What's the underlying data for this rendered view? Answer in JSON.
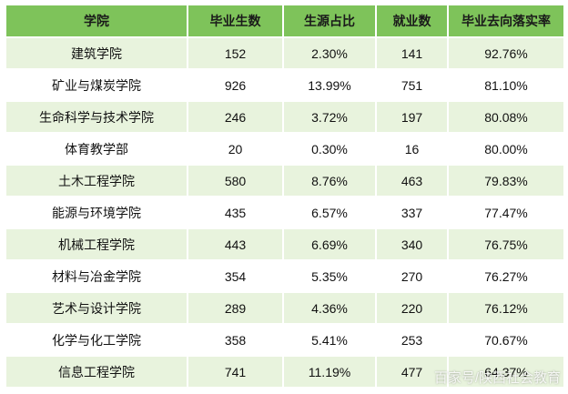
{
  "table": {
    "header": [
      "学院",
      "毕业生数",
      "生源占比",
      "就业数",
      "毕业去向落实率"
    ],
    "rows": [
      [
        "建筑学院",
        "152",
        "2.30%",
        "141",
        "92.76%"
      ],
      [
        "矿业与煤炭学院",
        "926",
        "13.99%",
        "751",
        "81.10%"
      ],
      [
        "生命科学与技术学院",
        "246",
        "3.72%",
        "197",
        "80.08%"
      ],
      [
        "体育教学部",
        "20",
        "0.30%",
        "16",
        "80.00%"
      ],
      [
        "土木工程学院",
        "580",
        "8.76%",
        "463",
        "79.83%"
      ],
      [
        "能源与环境学院",
        "435",
        "6.57%",
        "337",
        "77.47%"
      ],
      [
        "机械工程学院",
        "443",
        "6.69%",
        "340",
        "76.75%"
      ],
      [
        "材料与冶金学院",
        "354",
        "5.35%",
        "270",
        "76.27%"
      ],
      [
        "艺术与设计学院",
        "289",
        "4.36%",
        "220",
        "76.12%"
      ],
      [
        "化学与化工学院",
        "358",
        "5.41%",
        "253",
        "70.67%"
      ],
      [
        "信息工程学院",
        "741",
        "11.19%",
        "477",
        "64.37%"
      ]
    ]
  },
  "watermark": "百家号/陕西社会教育"
}
